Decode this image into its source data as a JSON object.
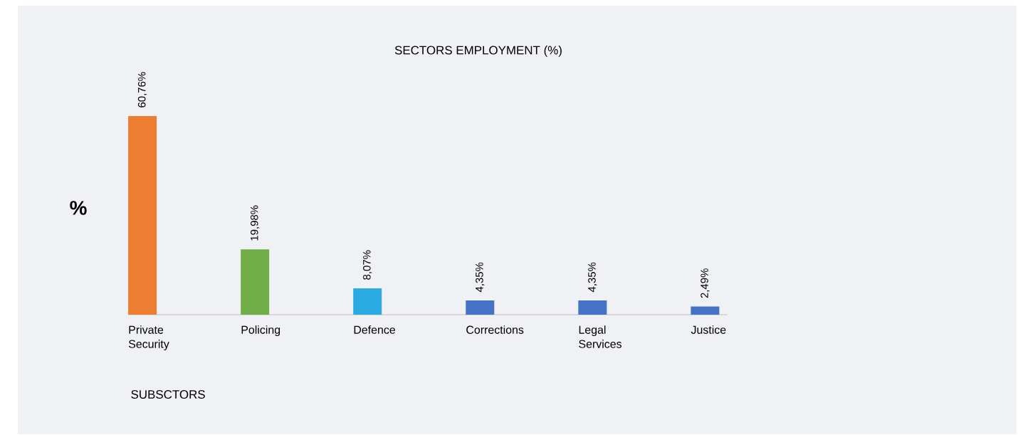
{
  "chart_data": {
    "type": "bar",
    "title": "SECTORS EMPLOYMENT  (%)",
    "xlabel": "SUBSCTORS",
    "ylabel": "%",
    "categories": [
      "Private Security",
      "Policing",
      "Defence",
      "Corrections",
      "Legal Services",
      "Justice"
    ],
    "values": [
      60.76,
      19.98,
      8.07,
      4.35,
      4.35,
      2.49
    ],
    "value_labels": [
      "60,76%",
      "19,98%",
      "8,07%",
      "4,35%",
      "4,35%",
      "2,49%"
    ],
    "colors": [
      "#ed7d31",
      "#70ad47",
      "#29abe2",
      "#4472c4",
      "#4472c4",
      "#4472c4"
    ]
  }
}
